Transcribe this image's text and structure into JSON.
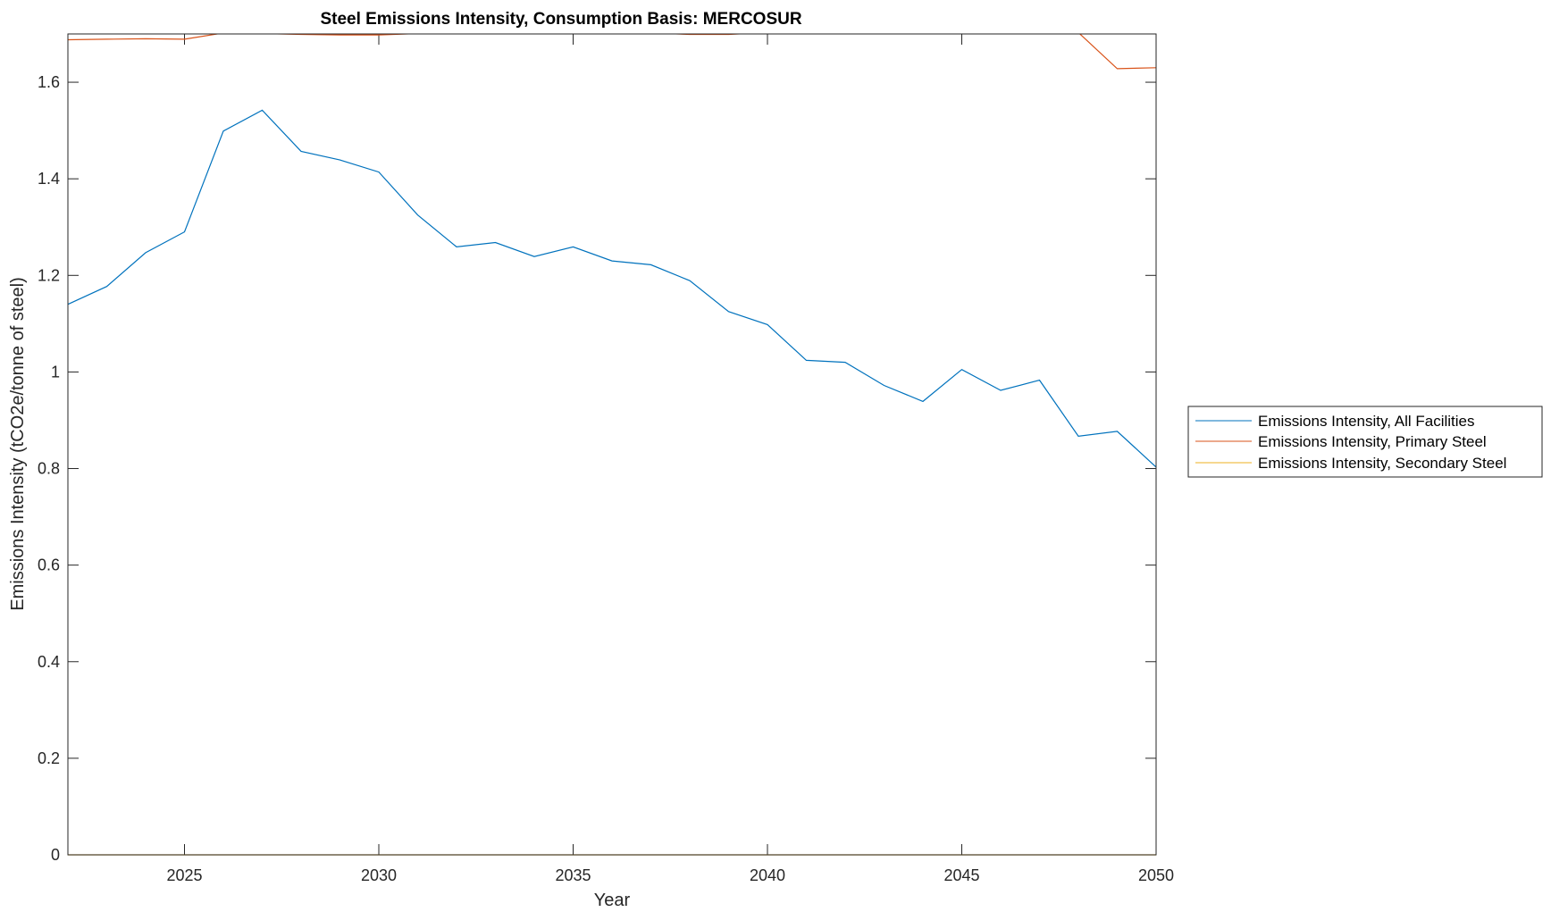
{
  "chart_data": {
    "type": "line",
    "title": "Steel Emissions Intensity, Consumption Basis: MERCOSUR",
    "xlabel": "Year",
    "ylabel": "Emissions Intensity (tCO2e/tonne of steel)",
    "xlim": [
      2022,
      2050
    ],
    "ylim": [
      0,
      1.7
    ],
    "xticks": [
      "2025",
      "2030",
      "2035",
      "2040",
      "2045",
      "2050"
    ],
    "yticks": [
      "0",
      "0.2",
      "0.4",
      "0.6",
      "0.8",
      "1",
      "1.2",
      "1.4",
      "1.6"
    ],
    "grid": false,
    "legend_position": "outside-right",
    "x": [
      2022,
      2023,
      2024,
      2025,
      2026,
      2027,
      2028,
      2029,
      2030,
      2031,
      2032,
      2033,
      2034,
      2035,
      2036,
      2037,
      2038,
      2039,
      2040,
      2041,
      2042,
      2043,
      2044,
      2045,
      2046,
      2047,
      2048,
      2049,
      2050
    ],
    "series": [
      {
        "name": "Emissions Intensity, All Facilities",
        "color": "#0072BD",
        "values": [
          1.14,
          1.177,
          1.247,
          1.29,
          1.499,
          1.542,
          1.457,
          1.439,
          1.414,
          1.325,
          1.259,
          1.268,
          1.239,
          1.259,
          1.23,
          1.222,
          1.189,
          1.125,
          1.098,
          1.024,
          1.02,
          0.972,
          0.939,
          1.005,
          0.962,
          0.983,
          0.867,
          0.877,
          0.803
        ]
      },
      {
        "name": "Emissions Intensity, Primary Steel",
        "color": "#D95319",
        "values": [
          1.688,
          1.689,
          1.69,
          1.689,
          1.702,
          1.701,
          1.699,
          1.698,
          1.698,
          1.701,
          1.702,
          1.703,
          1.703,
          1.703,
          1.703,
          1.702,
          1.699,
          1.699,
          1.703,
          1.703,
          1.703,
          1.703,
          1.703,
          1.703,
          1.703,
          1.703,
          1.703,
          1.628,
          1.63
        ]
      },
      {
        "name": "Emissions Intensity, Secondary Steel",
        "color": "#EDB120",
        "values": [
          0,
          0,
          0,
          0,
          0,
          0,
          0,
          0,
          0,
          0,
          0,
          0,
          0,
          0,
          0,
          0,
          0,
          0,
          0,
          0,
          0,
          0,
          0,
          0,
          0,
          0,
          0,
          0,
          0
        ]
      }
    ]
  }
}
